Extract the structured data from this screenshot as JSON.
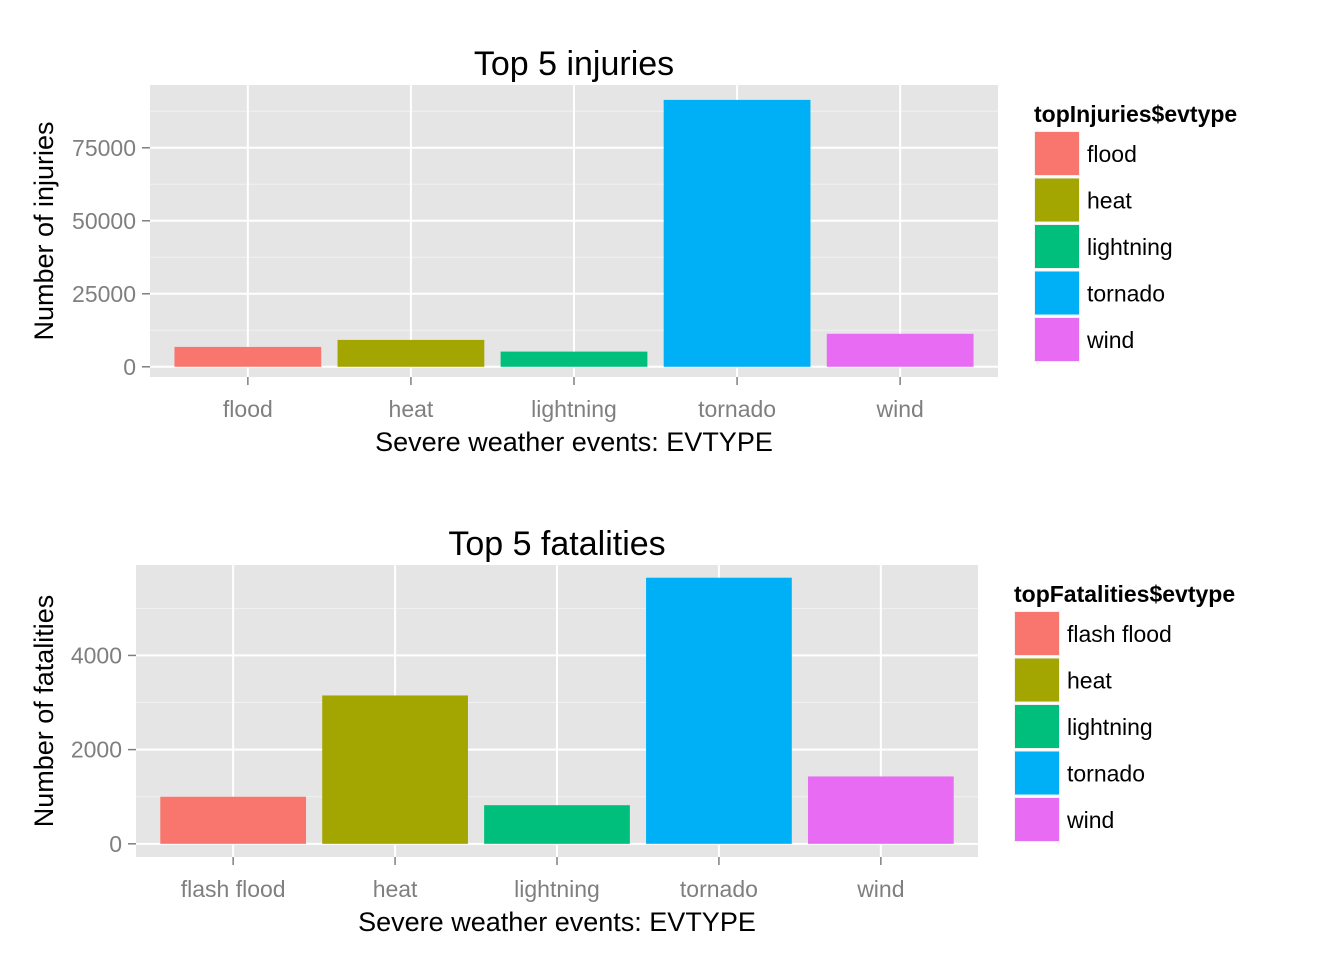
{
  "chart_data": [
    {
      "type": "bar",
      "title": "Top 5 injuries",
      "xlabel": "Severe weather events: EVTYPE",
      "ylabel": "Number of injuries",
      "categories": [
        "flood",
        "heat",
        "lightning",
        "tornado",
        "wind"
      ],
      "values": [
        6800,
        9200,
        5200,
        91400,
        11300
      ],
      "colors": [
        "#F8766D",
        "#A3A500",
        "#00BF7D",
        "#00B0F6",
        "#E76BF3"
      ],
      "yticks": [
        0,
        25000,
        50000,
        75000
      ],
      "ytick_labels": [
        "0",
        "25000",
        "50000",
        "75000"
      ],
      "ylim": [
        -3500,
        96500
      ],
      "grid": true,
      "legend_title": "topInjuries$evtype",
      "legend_entries": [
        "flood",
        "heat",
        "lightning",
        "tornado",
        "wind"
      ],
      "legend_position": "right"
    },
    {
      "type": "bar",
      "title": "Top 5 fatalities",
      "xlabel": "Severe weather events: EVTYPE",
      "ylabel": "Number of fatalities",
      "categories": [
        "flash flood",
        "heat",
        "lightning",
        "tornado",
        "wind"
      ],
      "values": [
        1000,
        3150,
        820,
        5650,
        1430
      ],
      "colors": [
        "#F8766D",
        "#A3A500",
        "#00BF7D",
        "#00B0F6",
        "#E76BF3"
      ],
      "yticks": [
        0,
        2000,
        4000
      ],
      "ytick_labels": [
        "0",
        "2000",
        "4000"
      ],
      "ylim": [
        -280,
        5920
      ],
      "grid": true,
      "legend_title": "topFatalities$evtype",
      "legend_entries": [
        "flash flood",
        "heat",
        "lightning",
        "tornado",
        "wind"
      ],
      "legend_position": "right"
    }
  ]
}
